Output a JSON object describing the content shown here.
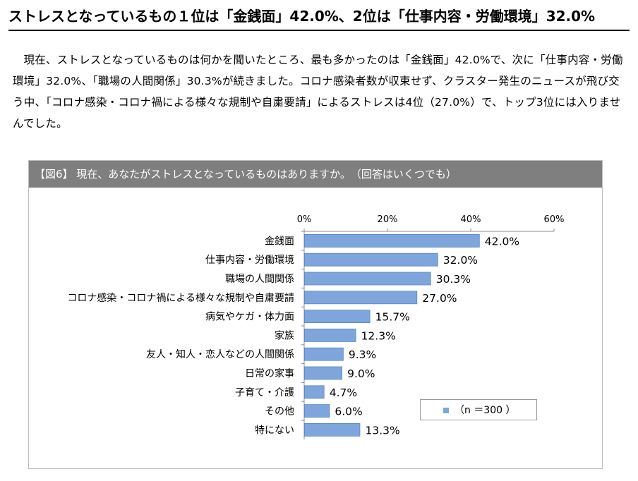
{
  "headline": "ストレスとなっているもの１位は「金銭面」42.0%、2位は「仕事内容・労働環境」32.0%",
  "body_text": "現在、ストレスとなっているものは何かを聞いたところ、最も多かったのは「金銭面」42.0%で、次に「仕事内容・労働環境」32.0%、「職場の人間関係」30.3%が続きました。コロナ感染者数が収束せず、クラスター発生のニュースが飛び交う中、「コロナ感染・コロナ禍による様々な規制や自粛要請」によるストレスは4位（27.0%）で、トップ3位には入りませんでした。",
  "figure": {
    "title": "【図6】 現在、あなたがストレスとなっているものはありますか。　（回答はいくつでも）",
    "legend_label": "（n ＝300 ）"
  },
  "colors": {
    "bar": "#7ea6dc",
    "bar_edge": "#5b86c0",
    "header_bg": "#7f7f7f"
  },
  "chart_data": {
    "type": "bar",
    "orientation": "horizontal",
    "categories": [
      "金銭面",
      "仕事内容・労働環境",
      "職場の人間関係",
      "コロナ感染・コロナ禍による様々な規制や自粛要請",
      "病気やケガ・体力面",
      "家族",
      "友人・知人・恋人などの人間関係",
      "日常の家事",
      "子育て・介護",
      "その他",
      "特にない"
    ],
    "values": [
      42.0,
      32.0,
      30.3,
      27.0,
      15.7,
      12.3,
      9.3,
      9.0,
      4.7,
      6.0,
      13.3
    ],
    "value_labels": [
      "42.0%",
      "32.0%",
      "30.3%",
      "27.0%",
      "15.7%",
      "12.3%",
      "9.3%",
      "9.0%",
      "4.7%",
      "6.0%",
      "13.3%"
    ],
    "xlim": [
      0,
      60
    ],
    "ticks": [
      0,
      20,
      40,
      60
    ],
    "tick_labels": [
      "0%",
      "20%",
      "40%",
      "60%"
    ],
    "axis_position": "top",
    "grid": false,
    "legend": "bottom-right"
  }
}
